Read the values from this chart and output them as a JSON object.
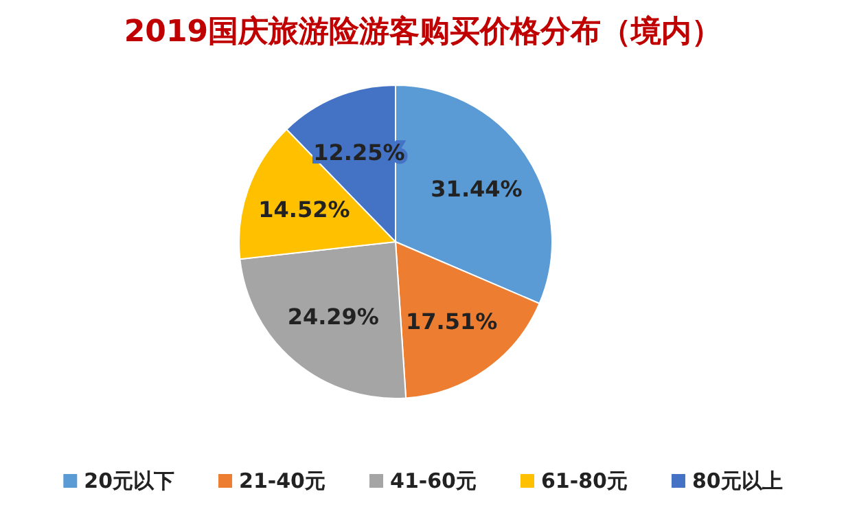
{
  "chart_data": {
    "type": "pie",
    "title": "2019国庆旅游险游客购买价格分布（境内）",
    "categories": [
      "20元以下",
      "21-40元",
      "41-60元",
      "61-80元",
      "80元以上"
    ],
    "values": [
      31.44,
      17.51,
      24.29,
      14.52,
      12.25
    ],
    "value_labels": [
      "31.44%",
      "17.51%",
      "24.29%",
      "14.52%",
      "12.25%"
    ],
    "colors": [
      "#5b9bd5",
      "#ed7d31",
      "#a5a5a5",
      "#ffc000",
      "#4472c4"
    ],
    "legend": "bottom"
  }
}
